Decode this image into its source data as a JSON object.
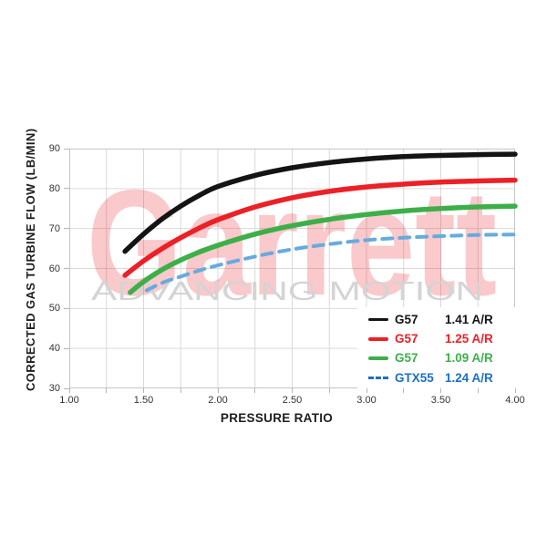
{
  "watermark": {
    "brand": "Garrett",
    "tagline": "ADVANCING MOTION",
    "brand_color": "rgba(236,28,36,0.24)",
    "tagline_color": "#d4d4d4"
  },
  "legend": {
    "background": "#ffffff"
  },
  "chart_data": {
    "type": "line",
    "title": "",
    "xlabel": "PRESSURE RATIO",
    "ylabel": "CORRECTED GAS TURBINE FLOW (LB/MIN)",
    "xlim": [
      1.0,
      4.0
    ],
    "ylim": [
      30,
      90
    ],
    "x_ticks": [
      {
        "v": 1.0,
        "label": "1.00"
      },
      {
        "v": 1.5,
        "label": "1.50"
      },
      {
        "v": 2.0,
        "label": "2.00"
      },
      {
        "v": 2.5,
        "label": "2.50"
      },
      {
        "v": 3.0,
        "label": "3.00"
      },
      {
        "v": 3.5,
        "label": "3.50"
      },
      {
        "v": 4.0,
        "label": "4.00"
      }
    ],
    "x_minor_tick_interval": 0.25,
    "y_ticks": [
      {
        "v": 90,
        "label": "90"
      },
      {
        "v": 80,
        "label": "80"
      },
      {
        "v": 70,
        "label": "70"
      },
      {
        "v": 60,
        "label": "60"
      },
      {
        "v": 50,
        "label": "50"
      },
      {
        "v": 40,
        "label": "40"
      },
      {
        "v": 30,
        "label": "30"
      }
    ],
    "grid": {
      "color": "#d9d9d9",
      "x_interval": 0.25,
      "y_interval": 10,
      "border_color": "#c6c6c6"
    },
    "legend_position": "inside-bottom-right",
    "series": [
      {
        "name": "G57",
        "ar_ratio": "1.41 A/R",
        "color": "#141414",
        "legend_text_color": "#141414",
        "line_style": "solid",
        "stroke_width": 5.5,
        "points": [
          [
            1.375,
            64.3
          ],
          [
            1.5,
            68.6
          ],
          [
            1.625,
            72.4
          ],
          [
            1.75,
            75.6
          ],
          [
            1.875,
            78.3
          ],
          [
            2.0,
            80.5
          ],
          [
            2.25,
            83.3
          ],
          [
            2.5,
            85.2
          ],
          [
            2.75,
            86.5
          ],
          [
            3.0,
            87.4
          ],
          [
            3.25,
            88.0
          ],
          [
            3.5,
            88.3
          ],
          [
            3.75,
            88.5
          ],
          [
            4.0,
            88.6
          ]
        ]
      },
      {
        "name": "G57",
        "ar_ratio": "1.25 A/R",
        "color": "#ec2027",
        "legend_text_color": "#ec2027",
        "line_style": "solid",
        "stroke_width": 5.5,
        "points": [
          [
            1.375,
            58.3
          ],
          [
            1.5,
            61.9
          ],
          [
            1.625,
            65.0
          ],
          [
            1.75,
            67.7
          ],
          [
            1.875,
            70.1
          ],
          [
            2.0,
            72.2
          ],
          [
            2.25,
            75.4
          ],
          [
            2.5,
            77.7
          ],
          [
            2.75,
            79.3
          ],
          [
            3.0,
            80.4
          ],
          [
            3.25,
            81.1
          ],
          [
            3.5,
            81.6
          ],
          [
            3.75,
            81.9
          ],
          [
            4.0,
            82.1
          ]
        ]
      },
      {
        "name": "G57",
        "ar_ratio": "1.09 A/R",
        "color": "#3daf49",
        "legend_text_color": "#3daf49",
        "line_style": "solid",
        "stroke_width": 5.5,
        "points": [
          [
            1.41,
            54.0
          ],
          [
            1.5,
            56.7
          ],
          [
            1.625,
            59.7
          ],
          [
            1.75,
            62.1
          ],
          [
            1.875,
            64.1
          ],
          [
            2.0,
            65.8
          ],
          [
            2.25,
            68.6
          ],
          [
            2.5,
            70.7
          ],
          [
            2.75,
            72.3
          ],
          [
            3.0,
            73.5
          ],
          [
            3.25,
            74.4
          ],
          [
            3.5,
            75.0
          ],
          [
            3.75,
            75.4
          ],
          [
            4.0,
            75.6
          ]
        ]
      },
      {
        "name": "GTX55",
        "ar_ratio": "1.24 A/R",
        "color": "#66abde",
        "legend_text_color": "#1b6fc4",
        "line_style": "dashed",
        "stroke_width": 4,
        "points": [
          [
            1.52,
            54.5
          ],
          [
            1.625,
            56.4
          ],
          [
            1.75,
            58.0
          ],
          [
            1.875,
            59.5
          ],
          [
            2.0,
            60.8
          ],
          [
            2.25,
            63.0
          ],
          [
            2.5,
            64.8
          ],
          [
            2.75,
            66.1
          ],
          [
            3.0,
            67.1
          ],
          [
            3.25,
            67.7
          ],
          [
            3.5,
            68.1
          ],
          [
            3.75,
            68.4
          ],
          [
            4.0,
            68.5
          ]
        ]
      }
    ]
  }
}
